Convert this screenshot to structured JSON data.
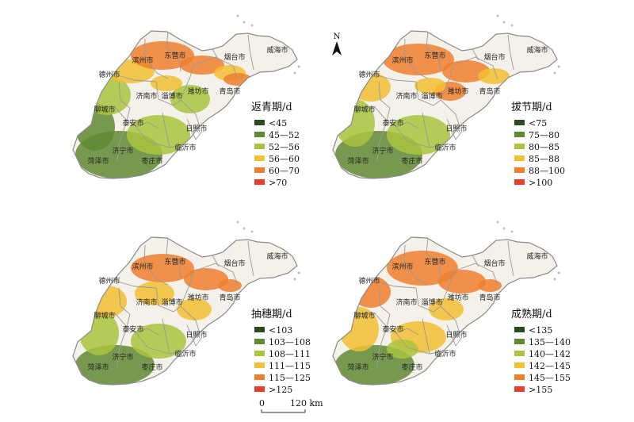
{
  "cities": [
    "东营市",
    "滨州市",
    "烟台市",
    "威海市",
    "德州市",
    "济南市",
    "淄博市",
    "潍坊市",
    "青岛市",
    "聊城市",
    "泰安市",
    "日照市",
    "济宁市",
    "临沂市",
    "菏泽市",
    "枣庄市"
  ],
  "panels": [
    {
      "id": "return-green",
      "legend_title": "返青期/d",
      "classes": [
        "<45",
        "45—52",
        "52—56",
        "56—60",
        "60—70",
        ">70"
      ]
    },
    {
      "id": "jointing",
      "legend_title": "拔节期/d",
      "classes": [
        "<75",
        "75—80",
        "80—85",
        "85—88",
        "88—100",
        ">100"
      ]
    },
    {
      "id": "heading",
      "legend_title": "抽穗期/d",
      "classes": [
        "<103",
        "103—108",
        "108—111",
        "111—115",
        "115—125",
        ">125"
      ]
    },
    {
      "id": "maturity",
      "legend_title": "成熟期/d",
      "classes": [
        "<135",
        "135—140",
        "140—142",
        "142—145",
        "145—155",
        ">155"
      ]
    }
  ],
  "class_colors": [
    "#2d4a1f",
    "#5f8a34",
    "#a9c43e",
    "#f2c033",
    "#ef7f2e",
    "#e0402c"
  ],
  "north_label": "N",
  "scalebar": {
    "start": "0",
    "end": "120 km"
  }
}
